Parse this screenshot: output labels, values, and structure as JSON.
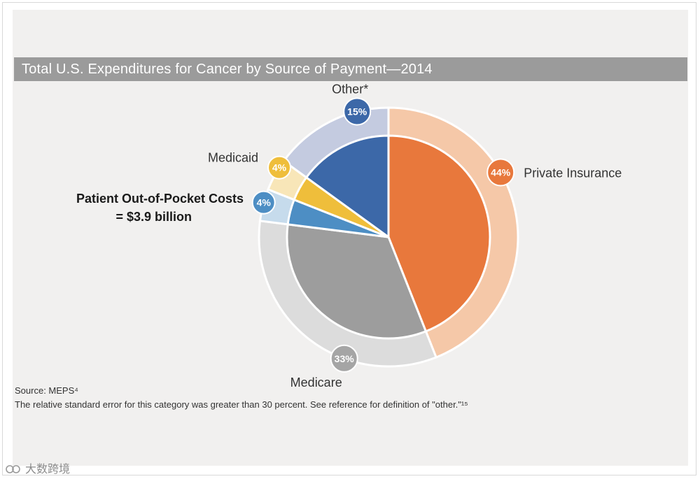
{
  "chart_data": {
    "type": "pie",
    "title": "Total U.S. Expenditures for Cancer by Source of Payment—2014",
    "slices": [
      {
        "label": "Private Insurance",
        "value": 44,
        "percent_label": "44%",
        "color": "#e8783c",
        "outer_color": "#f5c8a8",
        "badge_color": "#e8783c",
        "badge_text_color": "#ffffff"
      },
      {
        "label": "Medicare",
        "value": 33,
        "percent_label": "33%",
        "color": "#9d9d9d",
        "outer_color": "#dcdcdc",
        "badge_color": "#a5a5a5",
        "badge_text_color": "#ffffff"
      },
      {
        "label": "Patient Out-of-Pocket",
        "value": 4,
        "percent_label": "4%",
        "color": "#4d8ec4",
        "outer_color": "#c6dbec",
        "badge_color": "#4d8ec4",
        "badge_text_color": "#ffffff"
      },
      {
        "label": "Medicaid",
        "value": 4,
        "percent_label": "4%",
        "color": "#efbe3b",
        "outer_color": "#f8e6b8",
        "badge_color": "#efbe3b",
        "badge_text_color": "#ffffff"
      },
      {
        "label": "Other*",
        "value": 15,
        "percent_label": "15%",
        "color": "#3c68a8",
        "outer_color": "#c4cbe0",
        "badge_color": "#3c68a8",
        "badge_text_color": "#ffffff"
      }
    ],
    "callout": [
      "Patient Out-of-Pocket Costs",
      "= $3.9 billion"
    ]
  },
  "source": "Source: MEPS⁴",
  "note": "The relative standard error for this category was greater than 30 percent. See reference for definition of \"other.\"¹⁵",
  "watermark": "大数跨境"
}
